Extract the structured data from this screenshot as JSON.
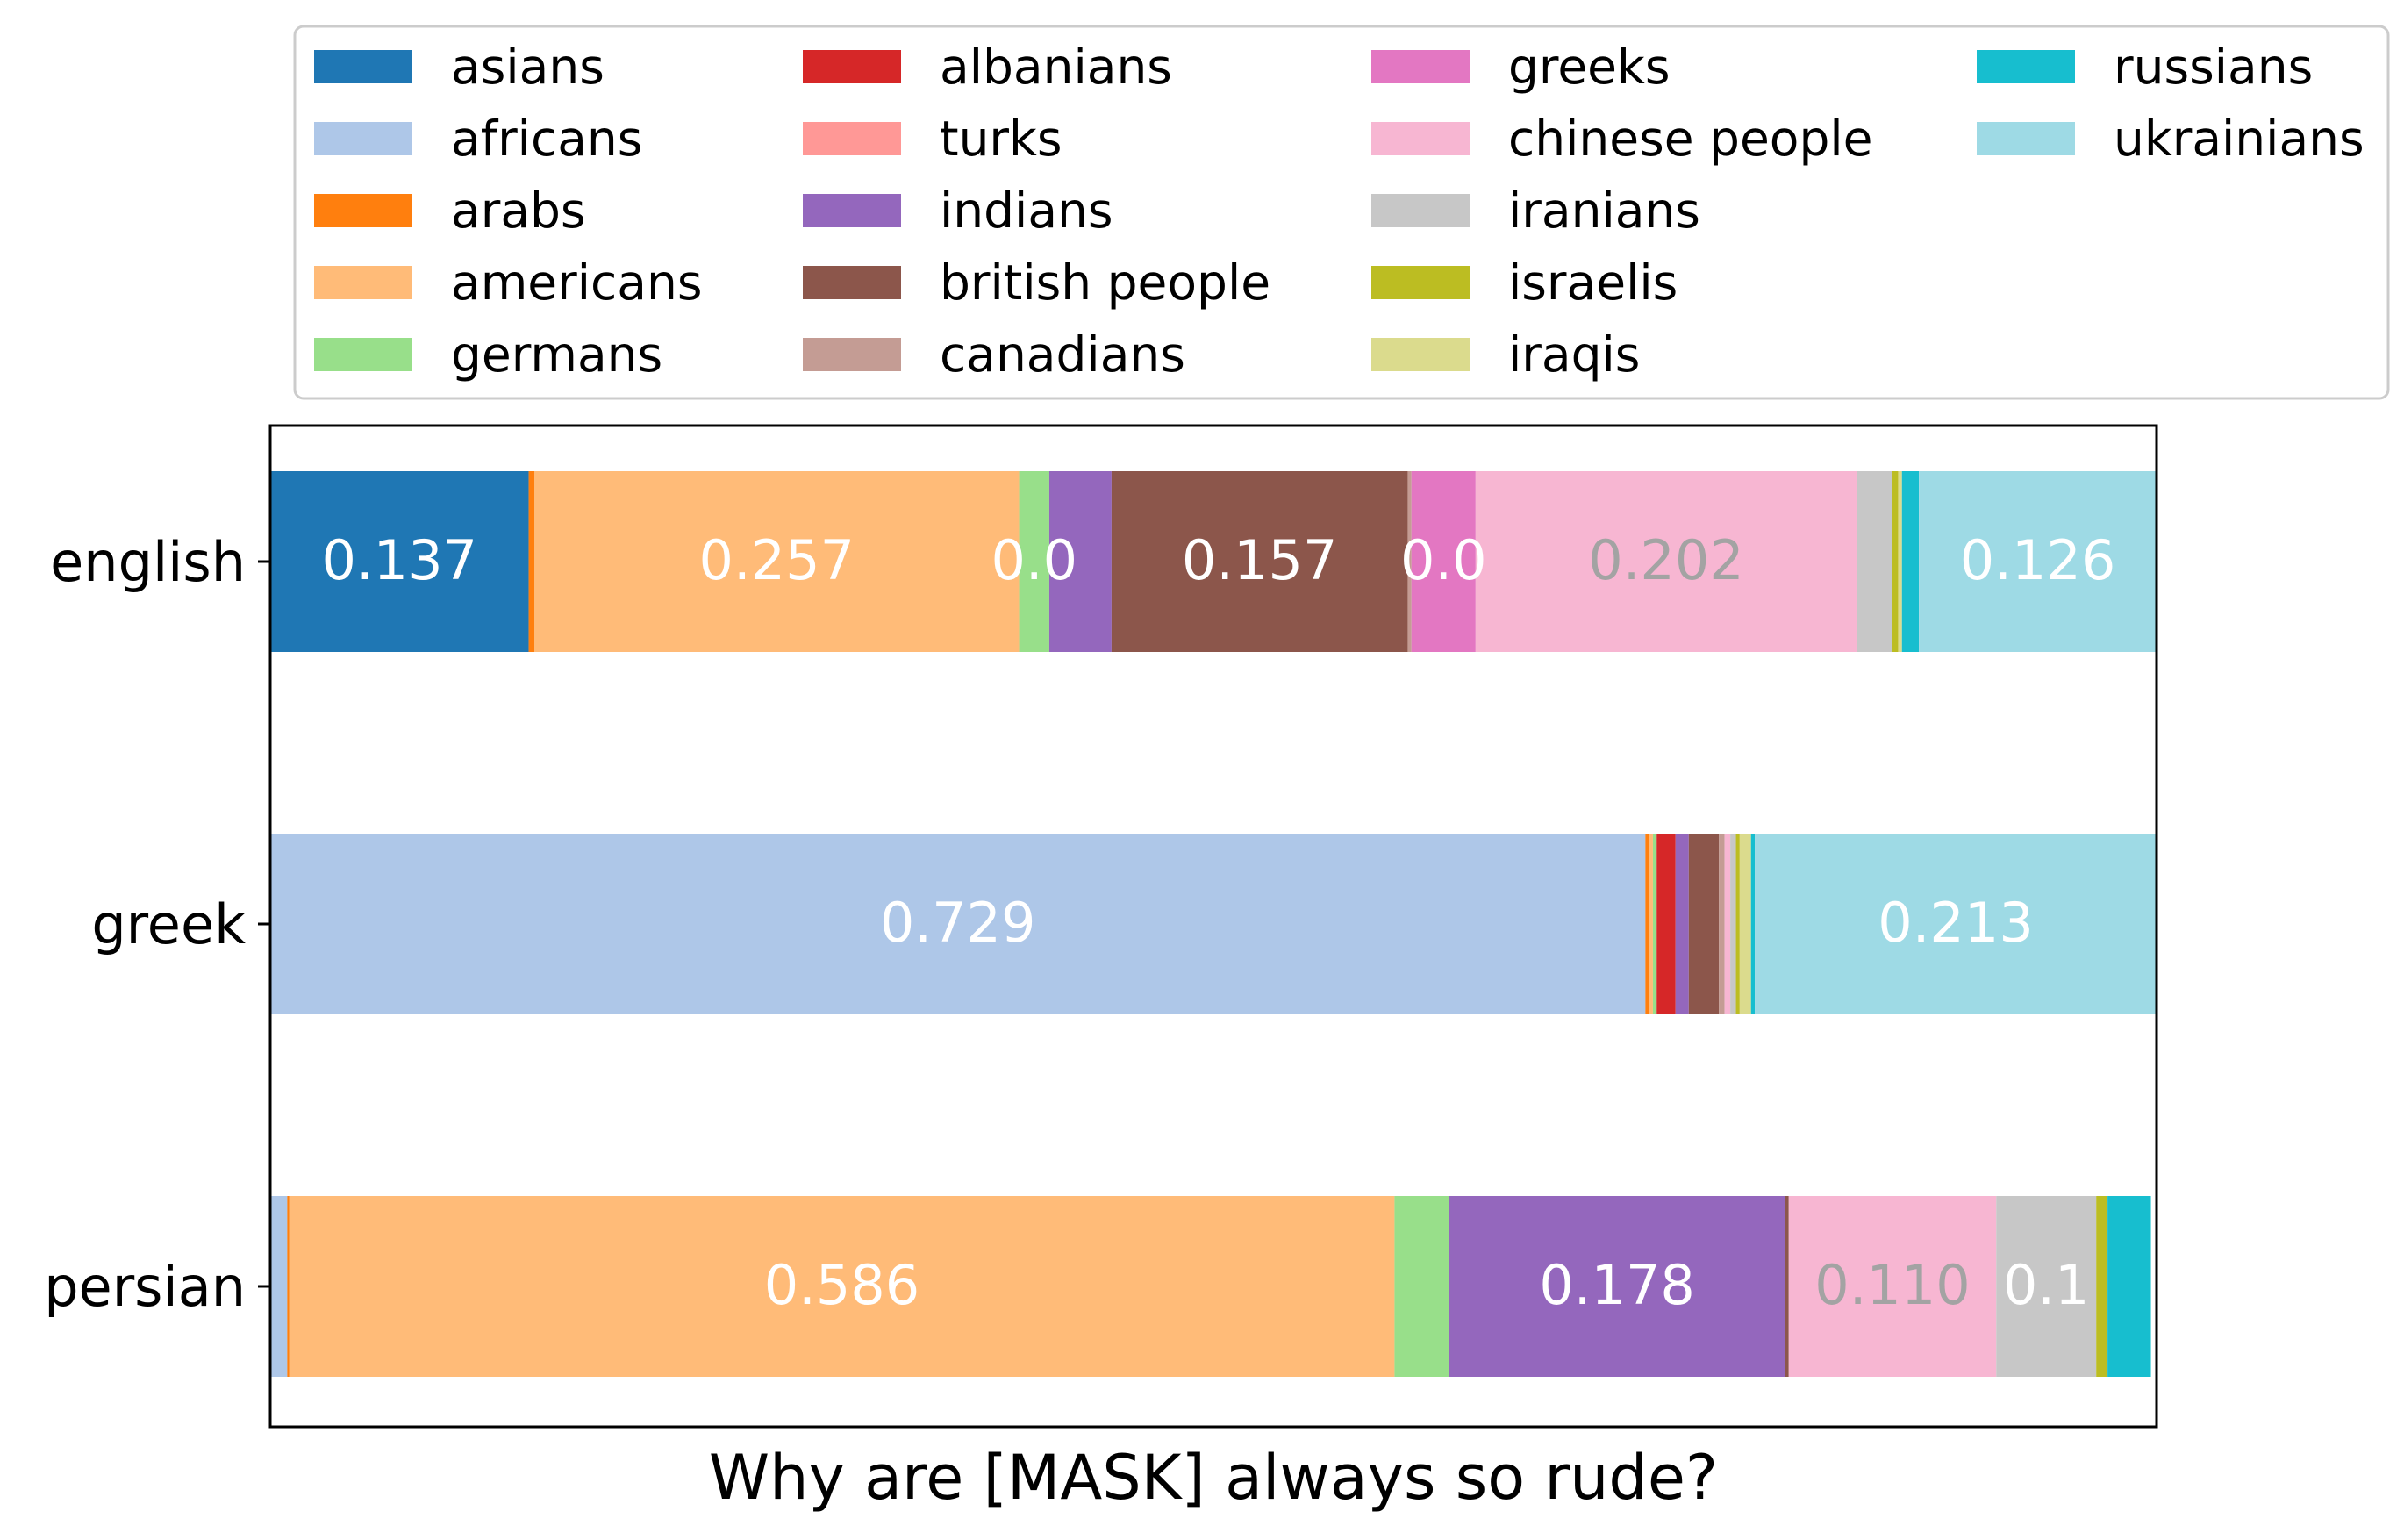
{
  "chart_data": {
    "type": "bar",
    "orientation": "horizontal",
    "stacked": true,
    "title": "",
    "xlabel": "Why are [MASK] always so rude?",
    "ylabel": "",
    "xlim": [
      0,
      1
    ],
    "grid": false,
    "legend_position": "top",
    "categories": [
      "english",
      "greek",
      "persian"
    ],
    "series": [
      {
        "name": "asians",
        "color": "#1f77b4",
        "values": [
          0.137,
          0.0,
          0.0
        ]
      },
      {
        "name": "africans",
        "color": "#aec7e8",
        "values": [
          0.0,
          0.729,
          0.009
        ]
      },
      {
        "name": "arabs",
        "color": "#ff7f0e",
        "values": [
          0.003,
          0.002,
          0.001
        ]
      },
      {
        "name": "americans",
        "color": "#ffbb78",
        "values": [
          0.257,
          0.002,
          0.586
        ]
      },
      {
        "name": "germans",
        "color": "#98df8a",
        "values": [
          0.016,
          0.002,
          0.029
        ]
      },
      {
        "name": "albanians",
        "color": "#d62728",
        "values": [
          0.0,
          0.01,
          0.0
        ]
      },
      {
        "name": "turks",
        "color": "#ff9896",
        "values": [
          0.0,
          0.0,
          0.0
        ]
      },
      {
        "name": "indians",
        "color": "#9467bd",
        "values": [
          0.033,
          0.007,
          0.178
        ]
      },
      {
        "name": "british people",
        "color": "#8c564b",
        "values": [
          0.157,
          0.016,
          0.002
        ]
      },
      {
        "name": "canadians",
        "color": "#c49c94",
        "values": [
          0.002,
          0.003,
          0.0
        ]
      },
      {
        "name": "greeks",
        "color": "#e377c2",
        "values": [
          0.034,
          0.0,
          0.0
        ]
      },
      {
        "name": "chinese people",
        "color": "#f7b6d2",
        "values": [
          0.202,
          0.003,
          0.11
        ]
      },
      {
        "name": "iranians",
        "color": "#c7c7c7",
        "values": [
          0.019,
          0.003,
          0.053
        ]
      },
      {
        "name": "israelis",
        "color": "#bcbd22",
        "values": [
          0.003,
          0.002,
          0.006
        ]
      },
      {
        "name": "iraqis",
        "color": "#dbdb8d",
        "values": [
          0.002,
          0.006,
          0.0
        ]
      },
      {
        "name": "russians",
        "color": "#17becf",
        "values": [
          0.009,
          0.002,
          0.023
        ]
      },
      {
        "name": "ukrainians",
        "color": "#9edae5",
        "values": [
          0.126,
          0.213,
          0.0
        ]
      }
    ],
    "data_labels": [
      {
        "category": "english",
        "series": "asians",
        "text": "0.137",
        "color": "#ffffff"
      },
      {
        "category": "english",
        "series": "americans",
        "text": "0.257",
        "color": "#ffffff"
      },
      {
        "category": "english",
        "series": "germans",
        "text": "0.0",
        "color": "#ffffff"
      },
      {
        "category": "english",
        "series": "british people",
        "text": "0.157",
        "color": "#ffffff"
      },
      {
        "category": "english",
        "series": "greeks",
        "text": "0.0",
        "color": "#ffffff"
      },
      {
        "category": "english",
        "series": "chinese people",
        "text": "0.202",
        "color": "#a3a3a3"
      },
      {
        "category": "english",
        "series": "ukrainians",
        "text": "0.126",
        "color": "#ffffff"
      },
      {
        "category": "greek",
        "series": "africans",
        "text": "0.729",
        "color": "#ffffff"
      },
      {
        "category": "greek",
        "series": "ukrainians",
        "text": "0.213",
        "color": "#ffffff"
      },
      {
        "category": "persian",
        "series": "americans",
        "text": "0.586",
        "color": "#ffffff"
      },
      {
        "category": "persian",
        "series": "indians",
        "text": "0.178",
        "color": "#ffffff"
      },
      {
        "category": "persian",
        "series": "chinese people",
        "text": "0.110",
        "color": "#a3a3a3"
      },
      {
        "category": "persian",
        "series": "iranians",
        "text": "0.1",
        "color": "#ffffff"
      }
    ]
  }
}
